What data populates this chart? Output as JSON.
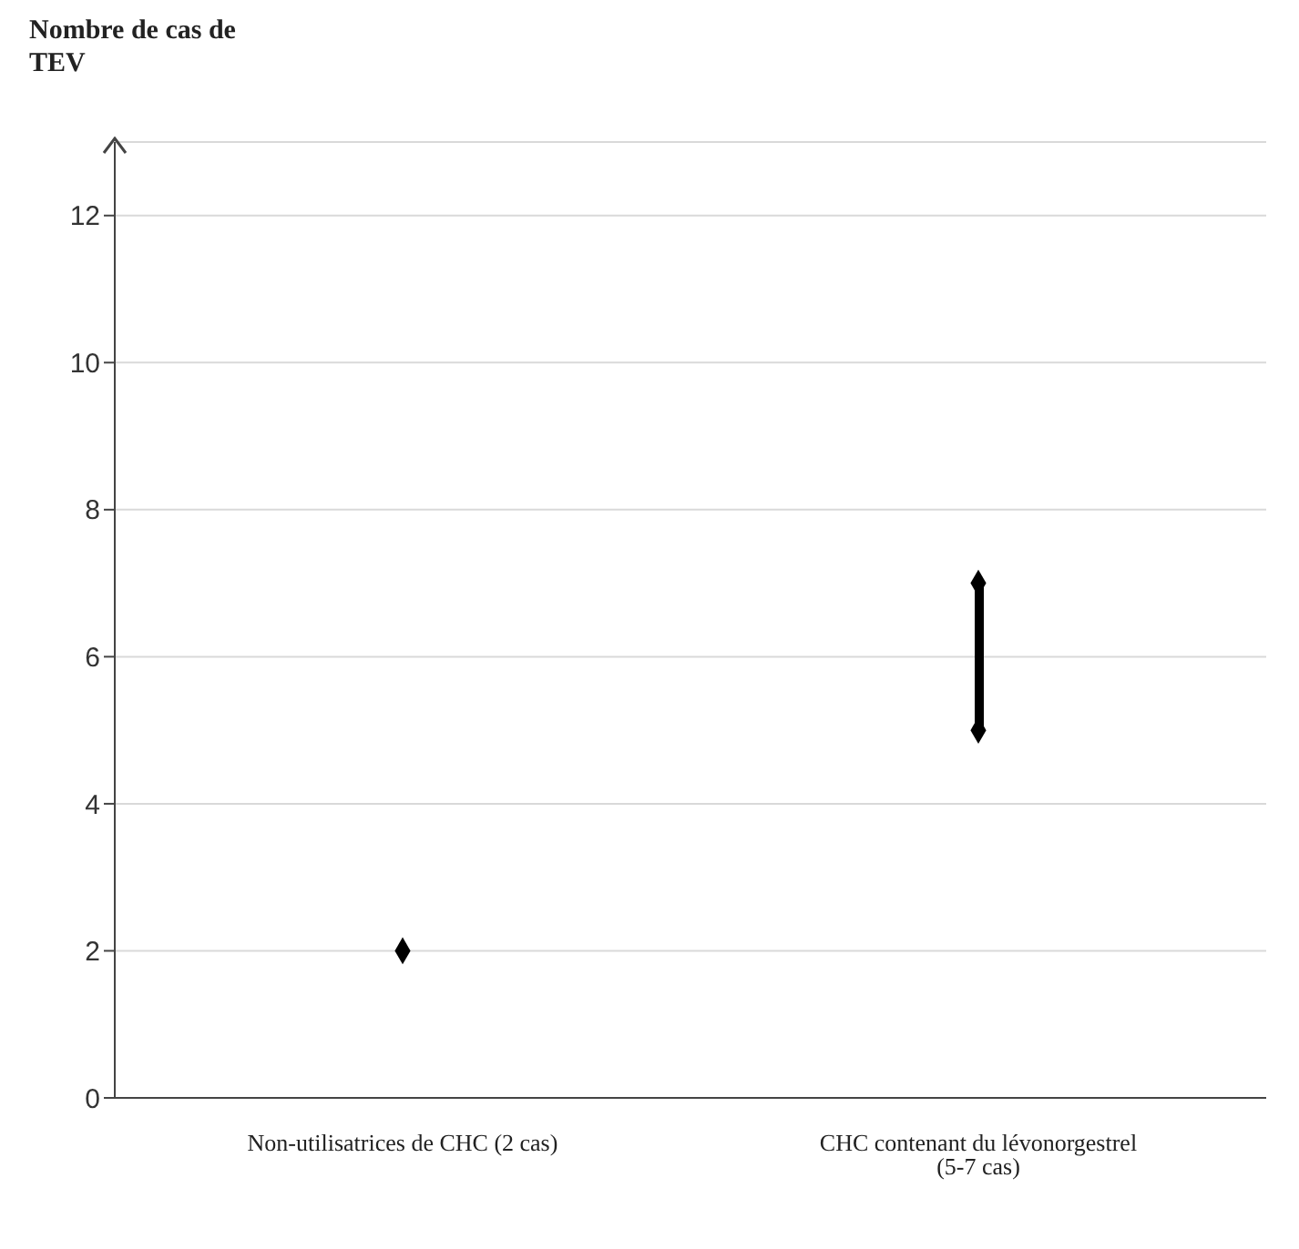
{
  "chart_data": {
    "type": "scatter",
    "ylabel": "Nombre de cas de TEV",
    "categories": [
      "Non-utilisatrices de CHC (2 cas)",
      "CHC contenant du lévonorgestrel (5-7 cas)"
    ],
    "series": [
      {
        "type": "bar",
        "color": "#000000",
        "base": [
          null,
          5
        ],
        "values": [
          null,
          2
        ]
      },
      {
        "color": "#000000",
        "values": [
          2,
          5
        ]
      },
      {
        "color": "#000000",
        "values": [
          null,
          7
        ]
      }
    ],
    "marker": "diamond",
    "ylim": [
      0,
      13
    ],
    "yticks": [
      0,
      2,
      4,
      6,
      8,
      10,
      12
    ],
    "grid": "y",
    "legend": false
  }
}
